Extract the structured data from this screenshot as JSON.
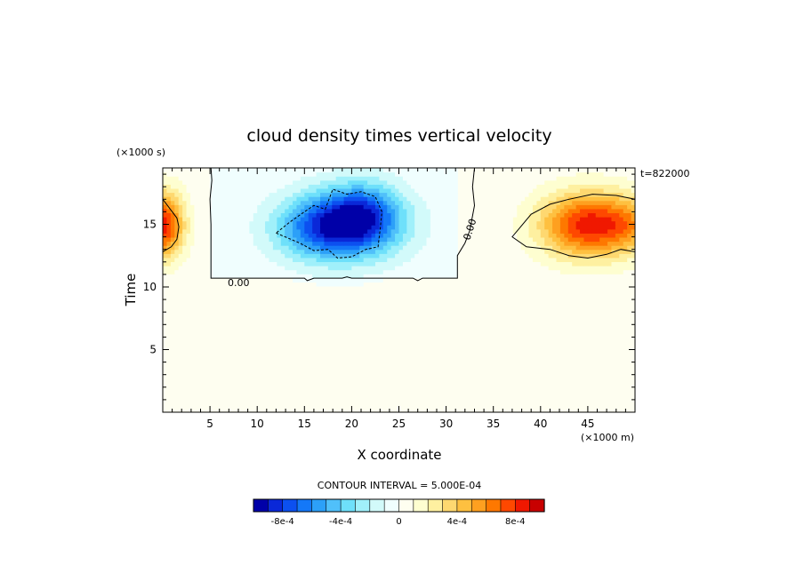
{
  "chart_data": {
    "type": "heatmap",
    "title": "cloud density times vertical velocity",
    "xlabel": "X coordinate",
    "ylabel": "Time",
    "x_units": "(×1000 m)",
    "y_units": "(×1000 s)",
    "timestamp_label": "t=822000",
    "xlim": [
      0,
      50
    ],
    "ylim": [
      0,
      19.5
    ],
    "x_ticks": [
      5,
      10,
      15,
      20,
      25,
      30,
      35,
      40,
      45
    ],
    "x_tick_labels": [
      "5",
      "10",
      "15",
      "20",
      "25",
      "30",
      "35",
      "40",
      "45"
    ],
    "y_ticks": [
      5,
      10,
      15
    ],
    "y_tick_labels": [
      "5",
      "10",
      "15"
    ],
    "contour_interval_label": "CONTOUR INTERVAL = 5.000E-04",
    "contour_labels": [
      "0.00",
      "0.00"
    ],
    "colorbar": {
      "levels": [
        -0.001,
        -0.0009,
        -0.0008,
        -0.0007,
        -0.0006,
        -0.0005,
        -0.0004,
        -0.0003,
        -0.0002,
        -0.0001,
        0,
        0.0001,
        0.0002,
        0.0003,
        0.0004,
        0.0005,
        0.0006,
        0.0007,
        0.0008,
        0.0009,
        0.001
      ],
      "colors": [
        "#0000a8",
        "#0a28d8",
        "#0c50f0",
        "#1478f8",
        "#2ca0f8",
        "#50c0fa",
        "#6ee0fa",
        "#a0f0fa",
        "#d2fafa",
        "#f0fefe",
        "#fefef0",
        "#fefed0",
        "#fef0a0",
        "#fed870",
        "#fec040",
        "#fea020",
        "#fe7800",
        "#fe4800",
        "#f01800",
        "#c80000"
      ],
      "tick_values": [
        -0.0008,
        -0.0004,
        0,
        0.0004,
        0.0008
      ],
      "tick_labels": [
        "-8e-4",
        "-4e-4",
        "0",
        "4e-4",
        "8e-4"
      ]
    },
    "features": [
      {
        "x": 19.5,
        "y": 15.0,
        "sx": 5.5,
        "sy": 2.6,
        "amp": -0.00092
      },
      {
        "x": 21.5,
        "y": 16.5,
        "sx": 3.5,
        "sy": 2.2,
        "amp": -0.00025
      },
      {
        "x": 15.0,
        "y": 14.5,
        "sx": 4.5,
        "sy": 2.4,
        "amp": -0.0002
      },
      {
        "x": 45.0,
        "y": 15.0,
        "sx": 5.0,
        "sy": 2.6,
        "amp": 0.00082
      },
      {
        "x": 49.5,
        "y": 15.0,
        "sx": 2.8,
        "sy": 2.2,
        "amp": 0.00025
      },
      {
        "x": 0.0,
        "y": 15.0,
        "sx": 2.2,
        "sy": 2.6,
        "amp": 0.00082
      }
    ],
    "zero_region": {
      "x_range": [
        5.1,
        31.2
      ],
      "y_range": [
        10.7,
        19.5
      ],
      "background_value": 3e-05,
      "inside_value": -3e-05
    },
    "contour_lines": [
      {
        "value": 0,
        "points": [
          [
            5.1,
            19.5
          ],
          [
            5.2,
            18.5
          ],
          [
            5.0,
            17.0
          ],
          [
            5.1,
            15.0
          ],
          [
            5.1,
            10.7
          ],
          [
            15.0,
            10.7
          ],
          [
            15.3,
            10.5
          ],
          [
            16.0,
            10.7
          ],
          [
            19.0,
            10.7
          ],
          [
            19.5,
            10.8
          ],
          [
            20.0,
            10.7
          ],
          [
            26.5,
            10.7
          ],
          [
            27.0,
            10.5
          ],
          [
            27.5,
            10.7
          ],
          [
            31.2,
            10.7
          ],
          [
            31.2,
            12.5
          ],
          [
            32.0,
            13.5
          ],
          [
            32.5,
            14.5
          ],
          [
            33.0,
            16.5
          ],
          [
            32.8,
            18.0
          ],
          [
            33.0,
            19.5
          ]
        ]
      },
      {
        "value": -0.0005,
        "closed": true,
        "points": [
          [
            12.0,
            14.3
          ],
          [
            14.5,
            13.5
          ],
          [
            16.0,
            12.9
          ],
          [
            17.5,
            13.0
          ],
          [
            18.5,
            12.3
          ],
          [
            20.0,
            12.4
          ],
          [
            21.5,
            13.0
          ],
          [
            22.8,
            13.2
          ],
          [
            23.0,
            14.5
          ],
          [
            23.2,
            16.0
          ],
          [
            22.5,
            17.2
          ],
          [
            21.0,
            17.6
          ],
          [
            19.5,
            17.4
          ],
          [
            18.0,
            17.8
          ],
          [
            17.2,
            16.2
          ],
          [
            16.0,
            16.5
          ],
          [
            15.0,
            16.0
          ],
          [
            13.5,
            15.2
          ]
        ]
      },
      {
        "value": 0.0005,
        "closed": true,
        "points": [
          [
            37.0,
            14.0
          ],
          [
            38.5,
            13.2
          ],
          [
            41.0,
            13.0
          ],
          [
            43.0,
            12.5
          ],
          [
            45.0,
            12.3
          ],
          [
            47.0,
            12.6
          ],
          [
            48.5,
            13.0
          ],
          [
            50.0,
            12.8
          ],
          [
            50.0,
            17.0
          ],
          [
            48.0,
            17.3
          ],
          [
            45.5,
            17.4
          ],
          [
            43.0,
            17.0
          ],
          [
            41.0,
            16.6
          ],
          [
            39.0,
            15.8
          ]
        ]
      },
      {
        "value": 0.0005,
        "closed": false,
        "points": [
          [
            0.0,
            17.0
          ],
          [
            0.7,
            16.3
          ],
          [
            1.5,
            15.5
          ],
          [
            1.7,
            14.8
          ],
          [
            1.5,
            13.8
          ],
          [
            0.9,
            13.2
          ],
          [
            0.0,
            12.8
          ]
        ]
      }
    ]
  }
}
